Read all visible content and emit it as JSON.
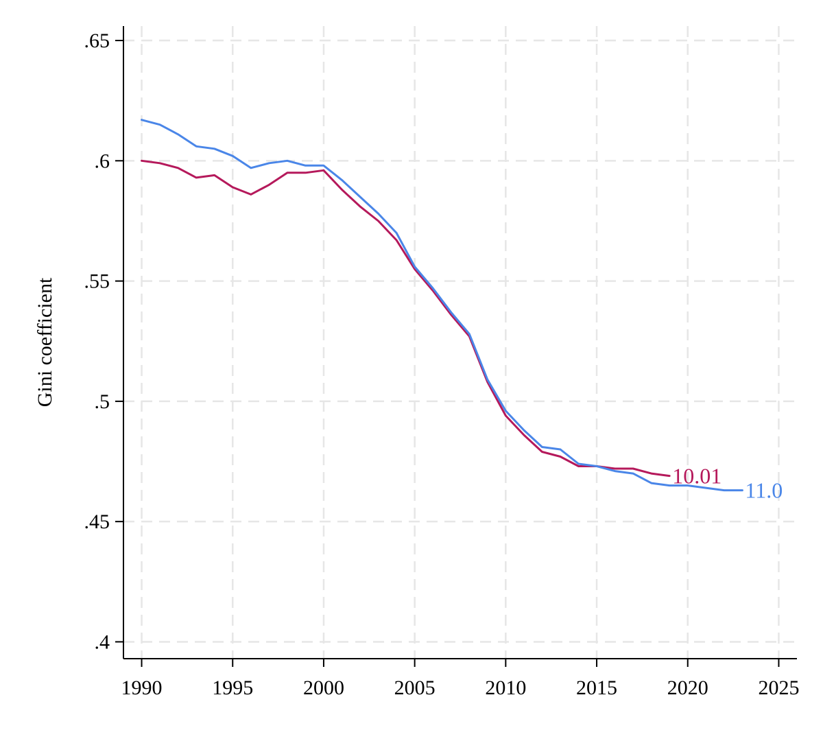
{
  "chart_data": {
    "type": "line",
    "title": "",
    "xlabel": "",
    "ylabel": "Gini coefficient",
    "xlim": [
      1989,
      2026
    ],
    "ylim": [
      0.393,
      0.656
    ],
    "grid": true,
    "xticks": [
      1990,
      1995,
      2000,
      2005,
      2010,
      2015,
      2020,
      2025
    ],
    "xtick_labels": [
      "1990",
      "1995",
      "2000",
      "2005",
      "2010",
      "2015",
      "2020",
      "2025"
    ],
    "yticks": [
      0.4,
      0.45,
      0.5,
      0.55,
      0.6,
      0.65
    ],
    "ytick_labels": [
      ".4",
      ".45",
      ".5",
      ".55",
      ".6",
      ".65"
    ],
    "series": [
      {
        "name": "10.01",
        "label": "10.01",
        "color": "#b5195b",
        "x": [
          1990,
          1991,
          1992,
          1993,
          1994,
          1995,
          1996,
          1997,
          1998,
          1999,
          2000,
          2001,
          2002,
          2003,
          2004,
          2005,
          2006,
          2007,
          2008,
          2009,
          2010,
          2011,
          2012,
          2013,
          2014,
          2015,
          2016,
          2017,
          2018,
          2019
        ],
        "values": [
          0.6,
          0.599,
          0.597,
          0.593,
          0.594,
          0.589,
          0.586,
          0.59,
          0.595,
          0.595,
          0.596,
          0.588,
          0.581,
          0.575,
          0.567,
          0.555,
          0.546,
          0.536,
          0.527,
          0.508,
          0.494,
          0.486,
          0.479,
          0.477,
          0.473,
          0.473,
          0.472,
          0.472,
          0.47,
          0.469
        ]
      },
      {
        "name": "11.0",
        "label": "11.0",
        "color": "#4a86e8",
        "x": [
          1990,
          1991,
          1992,
          1993,
          1994,
          1995,
          1996,
          1997,
          1998,
          1999,
          2000,
          2001,
          2002,
          2003,
          2004,
          2005,
          2006,
          2007,
          2008,
          2009,
          2010,
          2011,
          2012,
          2013,
          2014,
          2015,
          2016,
          2017,
          2018,
          2019,
          2020,
          2021,
          2022,
          2023
        ],
        "values": [
          0.617,
          0.615,
          0.611,
          0.606,
          0.605,
          0.602,
          0.597,
          0.599,
          0.6,
          0.598,
          0.598,
          0.592,
          0.585,
          0.578,
          0.57,
          0.556,
          0.547,
          0.537,
          0.528,
          0.509,
          0.496,
          0.488,
          0.481,
          0.48,
          0.474,
          0.473,
          0.471,
          0.47,
          0.466,
          0.465,
          0.465,
          0.464,
          0.463,
          0.463
        ]
      }
    ]
  }
}
